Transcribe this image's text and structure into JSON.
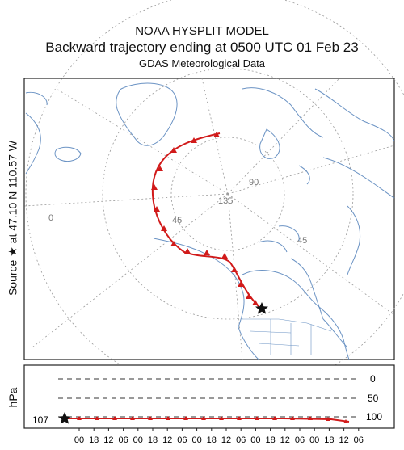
{
  "header": {
    "title_line1": "NOAA HYSPLIT MODEL",
    "title_line2": "Backward trajectory ending at 0500 UTC 01 Feb 23",
    "title_line3": "GDAS Meteorological Data"
  },
  "map": {
    "source_label": "Source ★ at  47.10 N  110.57 W",
    "grid_labels": [
      "90",
      "135",
      "45",
      "45",
      "0"
    ],
    "colors": {
      "coast": "#6b93c4",
      "trajectory": "#d11a1a",
      "grid": "#9a9a9a"
    }
  },
  "height_panel": {
    "ylabel": "hPa",
    "levels": [
      "0",
      "50",
      "100"
    ],
    "start_level_label": "107",
    "time_ticks": [
      "00",
      "18",
      "12",
      "06",
      "00",
      "18",
      "12",
      "06",
      "00",
      "18",
      "12",
      "06",
      "00",
      "18",
      "12",
      "06",
      "00",
      "18",
      "12",
      "06"
    ]
  }
}
